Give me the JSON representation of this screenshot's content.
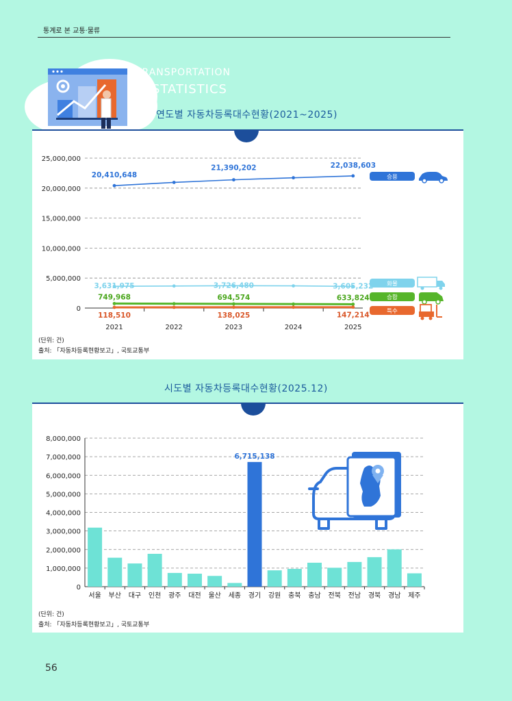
{
  "header": {
    "title": "통계로 본 교통·물류"
  },
  "decor": {
    "line1": "TRANSPORTATION",
    "line2": "STATISTICS"
  },
  "section1": {
    "title": "연도별 자동차등록대수현황(2021~2025)"
  },
  "section2": {
    "title": "시도별 자동차등록대수현황(2025.12)"
  },
  "notes": {
    "unit": "(단위: 건)",
    "source": "출처: 「자동차등록현황보고」, 국토교통부"
  },
  "page_number": "56",
  "chart_data": [
    {
      "type": "line",
      "x": [
        "2021",
        "2022",
        "2023",
        "2024",
        "2025"
      ],
      "ylim": [
        0,
        25000000
      ],
      "yticks": [
        "0",
        "5,000,000",
        "10,000,000",
        "15,000,000",
        "20,000,000",
        "25,000,000"
      ],
      "grid": true,
      "legend": "right",
      "series": [
        {
          "name": "승용",
          "color": "#2f74d8",
          "values": [
            20410648,
            20950000,
            21390202,
            21730000,
            22038603
          ],
          "labels": [
            "20,410,648",
            "",
            "21,390,202",
            "",
            "22,038,603"
          ],
          "labelColor": "#2f74d8",
          "icon": "car-icon"
        },
        {
          "name": "화물",
          "color": "#7fd3ec",
          "values": [
            3631975,
            3680000,
            3726480,
            3700000,
            3605232
          ],
          "labels": [
            "3,631,975",
            "",
            "3,726,480",
            "",
            "3,605,232"
          ],
          "labelColor": "#7fd3ec",
          "icon": "truck-icon"
        },
        {
          "name": "승합",
          "color": "#56b52a",
          "values": [
            749968,
            725000,
            694574,
            665000,
            633824
          ],
          "labels": [
            "749,968",
            "",
            "694,574",
            "",
            "633,824"
          ],
          "labelColor": "#4aa61c",
          "icon": "van-icon"
        },
        {
          "name": "특수",
          "color": "#e8682e",
          "values": [
            118510,
            128000,
            138025,
            142000,
            147214
          ],
          "labels": [
            "118,510",
            "",
            "138,025",
            "",
            "147,214"
          ],
          "labelColor": "#d9582a",
          "icon": "forklift-icon"
        }
      ]
    },
    {
      "type": "bar",
      "categories": [
        "서울",
        "부산",
        "대구",
        "인천",
        "광주",
        "대전",
        "울산",
        "세종",
        "경기",
        "강원",
        "충북",
        "충남",
        "전북",
        "전남",
        "경북",
        "경남",
        "제주"
      ],
      "values": [
        3180000,
        1560000,
        1250000,
        1770000,
        740000,
        700000,
        580000,
        200000,
        6715138,
        880000,
        960000,
        1290000,
        1020000,
        1330000,
        1590000,
        2010000,
        720000
      ],
      "highlight_index": 8,
      "highlight_label": "6,715,138",
      "ylim": [
        0,
        8000000
      ],
      "yticks": [
        "0",
        "1,000,000",
        "2,000,000",
        "3,000,000",
        "4,000,000",
        "5,000,000",
        "6,000,000",
        "7,000,000",
        "8,000,000"
      ],
      "colors": {
        "bar": "#6ee2d6",
        "highlight": "#2f74d8"
      },
      "grid": true
    }
  ]
}
